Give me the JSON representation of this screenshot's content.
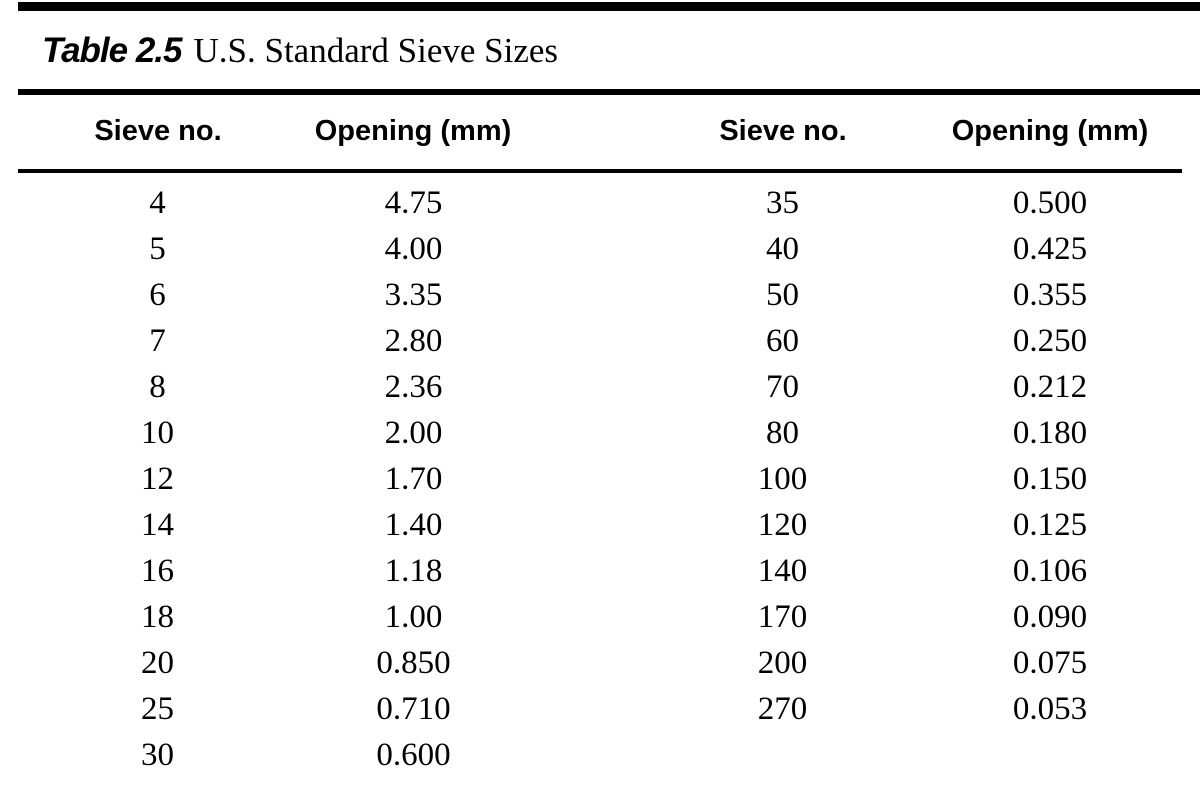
{
  "title": {
    "label": "Table 2.5",
    "text": "U.S. Standard Sieve Sizes"
  },
  "table": {
    "headers": [
      "Sieve no.",
      "Opening (mm)",
      "Sieve no.",
      "Opening (mm)"
    ],
    "rows": [
      [
        "4",
        "4.75",
        "35",
        "0.500"
      ],
      [
        "5",
        "4.00",
        "40",
        "0.425"
      ],
      [
        "6",
        "3.35",
        "50",
        "0.355"
      ],
      [
        "7",
        "2.80",
        "60",
        "0.250"
      ],
      [
        "8",
        "2.36",
        "70",
        "0.212"
      ],
      [
        "10",
        "2.00",
        "80",
        "0.180"
      ],
      [
        "12",
        "1.70",
        "100",
        "0.150"
      ],
      [
        "14",
        "1.40",
        "120",
        "0.125"
      ],
      [
        "16",
        "1.18",
        "140",
        "0.106"
      ],
      [
        "18",
        "1.00",
        "170",
        "0.090"
      ],
      [
        "20",
        "0.850",
        "200",
        "0.075"
      ],
      [
        "25",
        "0.710",
        "270",
        "0.053"
      ],
      [
        "30",
        "0.600",
        "",
        ""
      ]
    ]
  },
  "colors": {
    "ink": "#000000",
    "paper": "#ffffff"
  }
}
